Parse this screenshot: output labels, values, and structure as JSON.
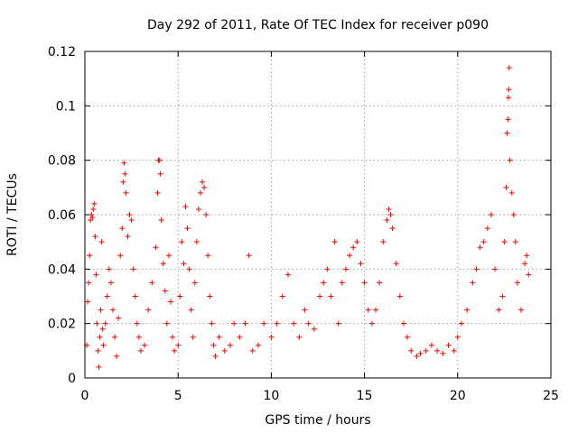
{
  "chart_data": {
    "type": "scatter",
    "title": "Day 292 of 2011, Rate Of TEC Index for receiver p090",
    "xlabel": "GPS time / hours",
    "ylabel": "ROTI / TECUs",
    "xlim": [
      0,
      25
    ],
    "ylim": [
      0,
      0.12
    ],
    "x_ticks": [
      0,
      5,
      10,
      15,
      20,
      25
    ],
    "x_tick_labels": [
      "0",
      "5",
      "10",
      "15",
      "20",
      "25"
    ],
    "y_ticks": [
      0,
      0.02,
      0.04,
      0.06,
      0.08,
      0.1,
      0.12
    ],
    "y_tick_labels": [
      "0",
      "0.02",
      "0.04",
      "0.06",
      "0.08",
      "0.1",
      "0.12"
    ],
    "grid": true,
    "marker": "plus",
    "color": "#ff0000",
    "series": [
      {
        "points": [
          [
            0.1,
            0.012
          ],
          [
            0.15,
            0.028
          ],
          [
            0.2,
            0.035
          ],
          [
            0.25,
            0.045
          ],
          [
            0.3,
            0.058
          ],
          [
            0.35,
            0.06
          ],
          [
            0.4,
            0.059
          ],
          [
            0.45,
            0.062
          ],
          [
            0.5,
            0.064
          ],
          [
            0.55,
            0.052
          ],
          [
            0.6,
            0.038
          ],
          [
            0.65,
            0.02
          ],
          [
            0.7,
            0.01
          ],
          [
            0.75,
            0.004
          ],
          [
            0.8,
            0.015
          ],
          [
            0.85,
            0.025
          ],
          [
            0.9,
            0.05
          ],
          [
            0.95,
            0.018
          ],
          [
            1.0,
            0.012
          ],
          [
            1.1,
            0.02
          ],
          [
            1.2,
            0.03
          ],
          [
            1.3,
            0.04
          ],
          [
            1.4,
            0.035
          ],
          [
            1.5,
            0.025
          ],
          [
            1.6,
            0.015
          ],
          [
            1.7,
            0.008
          ],
          [
            1.8,
            0.022
          ],
          [
            1.9,
            0.045
          ],
          [
            2.0,
            0.055
          ],
          [
            2.05,
            0.072
          ],
          [
            2.1,
            0.079
          ],
          [
            2.15,
            0.075
          ],
          [
            2.2,
            0.068
          ],
          [
            2.3,
            0.052
          ],
          [
            2.4,
            0.06
          ],
          [
            2.5,
            0.058
          ],
          [
            2.6,
            0.04
          ],
          [
            2.7,
            0.03
          ],
          [
            2.8,
            0.02
          ],
          [
            2.9,
            0.015
          ],
          [
            3.0,
            0.01
          ],
          [
            3.2,
            0.012
          ],
          [
            3.4,
            0.025
          ],
          [
            3.6,
            0.035
          ],
          [
            3.8,
            0.048
          ],
          [
            3.9,
            0.068
          ],
          [
            3.95,
            0.08
          ],
          [
            4.0,
            0.08
          ],
          [
            4.05,
            0.075
          ],
          [
            4.1,
            0.058
          ],
          [
            4.2,
            0.042
          ],
          [
            4.3,
            0.032
          ],
          [
            4.4,
            0.02
          ],
          [
            4.5,
            0.045
          ],
          [
            4.6,
            0.028
          ],
          [
            4.7,
            0.015
          ],
          [
            4.8,
            0.01
          ],
          [
            5.0,
            0.012
          ],
          [
            5.1,
            0.03
          ],
          [
            5.2,
            0.05
          ],
          [
            5.3,
            0.042
          ],
          [
            5.4,
            0.063
          ],
          [
            5.5,
            0.055
          ],
          [
            5.6,
            0.04
          ],
          [
            5.7,
            0.025
          ],
          [
            5.8,
            0.015
          ],
          [
            5.9,
            0.035
          ],
          [
            6.0,
            0.05
          ],
          [
            6.1,
            0.062
          ],
          [
            6.2,
            0.068
          ],
          [
            6.3,
            0.072
          ],
          [
            6.4,
            0.07
          ],
          [
            6.5,
            0.06
          ],
          [
            6.6,
            0.045
          ],
          [
            6.7,
            0.03
          ],
          [
            6.8,
            0.02
          ],
          [
            6.9,
            0.012
          ],
          [
            7.0,
            0.008
          ],
          [
            7.2,
            0.015
          ],
          [
            7.5,
            0.01
          ],
          [
            7.8,
            0.012
          ],
          [
            8.0,
            0.02
          ],
          [
            8.3,
            0.015
          ],
          [
            8.6,
            0.02
          ],
          [
            8.8,
            0.045
          ],
          [
            9.0,
            0.01
          ],
          [
            9.3,
            0.012
          ],
          [
            9.6,
            0.02
          ],
          [
            10.0,
            0.015
          ],
          [
            10.3,
            0.02
          ],
          [
            10.6,
            0.03
          ],
          [
            10.9,
            0.038
          ],
          [
            11.2,
            0.02
          ],
          [
            11.5,
            0.015
          ],
          [
            11.8,
            0.025
          ],
          [
            12.0,
            0.02
          ],
          [
            12.3,
            0.018
          ],
          [
            12.6,
            0.03
          ],
          [
            12.8,
            0.035
          ],
          [
            13.0,
            0.04
          ],
          [
            13.2,
            0.03
          ],
          [
            13.4,
            0.05
          ],
          [
            13.6,
            0.02
          ],
          [
            13.8,
            0.035
          ],
          [
            14.0,
            0.04
          ],
          [
            14.2,
            0.045
          ],
          [
            14.4,
            0.048
          ],
          [
            14.6,
            0.05
          ],
          [
            14.8,
            0.042
          ],
          [
            15.0,
            0.035
          ],
          [
            15.2,
            0.025
          ],
          [
            15.4,
            0.02
          ],
          [
            15.6,
            0.025
          ],
          [
            15.8,
            0.035
          ],
          [
            16.0,
            0.05
          ],
          [
            16.2,
            0.058
          ],
          [
            16.3,
            0.062
          ],
          [
            16.4,
            0.06
          ],
          [
            16.5,
            0.055
          ],
          [
            16.7,
            0.042
          ],
          [
            16.9,
            0.03
          ],
          [
            17.1,
            0.02
          ],
          [
            17.3,
            0.015
          ],
          [
            17.5,
            0.01
          ],
          [
            17.8,
            0.008
          ],
          [
            18.0,
            0.009
          ],
          [
            18.3,
            0.01
          ],
          [
            18.6,
            0.012
          ],
          [
            18.9,
            0.01
          ],
          [
            19.2,
            0.009
          ],
          [
            19.5,
            0.012
          ],
          [
            19.8,
            0.01
          ],
          [
            20.0,
            0.015
          ],
          [
            20.2,
            0.02
          ],
          [
            20.5,
            0.025
          ],
          [
            20.8,
            0.035
          ],
          [
            21.0,
            0.04
          ],
          [
            21.2,
            0.048
          ],
          [
            21.4,
            0.05
          ],
          [
            21.6,
            0.055
          ],
          [
            21.8,
            0.06
          ],
          [
            22.0,
            0.04
          ],
          [
            22.2,
            0.025
          ],
          [
            22.4,
            0.03
          ],
          [
            22.5,
            0.05
          ],
          [
            22.6,
            0.07
          ],
          [
            22.65,
            0.09
          ],
          [
            22.7,
            0.095
          ],
          [
            22.72,
            0.103
          ],
          [
            22.74,
            0.106
          ],
          [
            22.76,
            0.114
          ],
          [
            22.8,
            0.08
          ],
          [
            22.9,
            0.068
          ],
          [
            23.0,
            0.06
          ],
          [
            23.1,
            0.05
          ],
          [
            23.2,
            0.035
          ],
          [
            23.4,
            0.025
          ],
          [
            23.6,
            0.042
          ],
          [
            23.7,
            0.045
          ],
          [
            23.8,
            0.038
          ]
        ]
      }
    ]
  }
}
